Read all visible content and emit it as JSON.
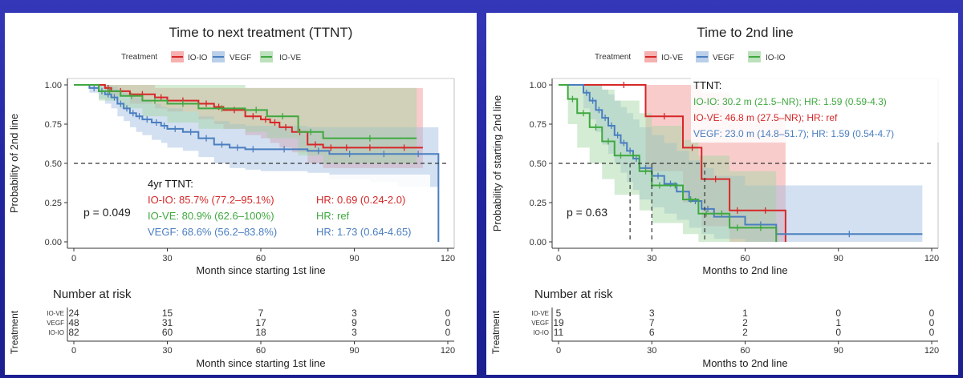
{
  "chart_data": [
    {
      "type": "line",
      "subtype": "kaplan-meier",
      "title": "Time to next treatment (TTNT)",
      "xlabel": "Month since starting 1st line",
      "ylabel": "Probability of 2nd line",
      "xlim": [
        0,
        120
      ],
      "ylim": [
        0,
        1
      ],
      "x_ticks": [
        0,
        30,
        60,
        90,
        120
      ],
      "x_tick_labels": [
        "0",
        "30",
        "60",
        "90",
        "120"
      ],
      "y_ticks": [
        0,
        0.25,
        0.5,
        0.75,
        1
      ],
      "y_tick_labels": [
        "0.00",
        "0.25",
        "0.50",
        "0.75",
        "1.00"
      ],
      "median_line": 0.5,
      "legend": {
        "title": "Treatment",
        "position": "top"
      },
      "series": [
        {
          "name": "IO-IO",
          "color": "#d62728",
          "fill": "#f28e8e",
          "x": [
            0,
            10,
            12,
            18,
            26,
            30,
            40,
            45,
            48,
            55,
            60,
            63,
            66,
            70,
            75,
            80,
            85,
            90,
            100,
            112
          ],
          "y": [
            1,
            0.98,
            0.96,
            0.94,
            0.92,
            0.9,
            0.88,
            0.86,
            0.84,
            0.8,
            0.78,
            0.76,
            0.73,
            0.7,
            0.62,
            0.6,
            0.6,
            0.6,
            0.6,
            0.6
          ],
          "lower": [
            1,
            0.95,
            0.93,
            0.88,
            0.85,
            0.83,
            0.78,
            0.75,
            0.72,
            0.68,
            0.66,
            0.63,
            0.6,
            0.57,
            0.5,
            0.47,
            0.47,
            0.47,
            0.47,
            0.47
          ],
          "upper": [
            1,
            1,
            1,
            1,
            0.98,
            0.98,
            0.98,
            0.98,
            0.98,
            0.98,
            0.98,
            0.98,
            0.98,
            0.98,
            0.98,
            0.98,
            0.98,
            0.98,
            0.98,
            0.98
          ]
        },
        {
          "name": "VEGF",
          "color": "#4a7ec0",
          "fill": "#9dbbe0",
          "x": [
            0,
            5,
            8,
            10,
            12,
            14,
            16,
            18,
            20,
            22,
            25,
            28,
            30,
            35,
            40,
            45,
            50,
            55,
            60,
            75,
            82,
            95,
            104,
            117
          ],
          "y": [
            1,
            0.98,
            0.96,
            0.94,
            0.92,
            0.88,
            0.85,
            0.82,
            0.8,
            0.78,
            0.76,
            0.74,
            0.72,
            0.7,
            0.66,
            0.62,
            0.6,
            0.59,
            0.59,
            0.58,
            0.56,
            0.56,
            0.56,
            0
          ],
          "lower": [
            1,
            0.95,
            0.91,
            0.88,
            0.85,
            0.8,
            0.77,
            0.73,
            0.7,
            0.68,
            0.65,
            0.63,
            0.6,
            0.58,
            0.54,
            0.5,
            0.47,
            0.46,
            0.45,
            0.44,
            0.4,
            0.38,
            0.35,
            0
          ],
          "upper": [
            1,
            1,
            1,
            1,
            0.99,
            0.97,
            0.95,
            0.93,
            0.92,
            0.9,
            0.88,
            0.86,
            0.85,
            0.83,
            0.8,
            0.77,
            0.75,
            0.74,
            0.74,
            0.73,
            0.73,
            0.73,
            0.73,
            0
          ]
        },
        {
          "name": "IO-VE",
          "color": "#3fa83f",
          "fill": "#9fd49f",
          "x": [
            0,
            8,
            15,
            22,
            30,
            40,
            55,
            62,
            72,
            80,
            110
          ],
          "y": [
            1,
            0.96,
            0.93,
            0.9,
            0.88,
            0.85,
            0.84,
            0.8,
            0.7,
            0.66,
            0.66
          ],
          "lower": [
            1,
            0.9,
            0.85,
            0.8,
            0.76,
            0.72,
            0.7,
            0.66,
            0.55,
            0.5,
            0.5
          ],
          "upper": [
            1,
            1,
            1,
            1,
            1,
            1,
            0.98,
            0.98,
            0.98,
            0.98,
            0.98
          ]
        }
      ],
      "pvalue": "p = 0.049",
      "annotation": {
        "heading": "4yr TTNT:",
        "rows": [
          {
            "series": "IO-IO",
            "text": "IO-IO: 85.7% (77.2–95.1%)",
            "hr": "HR: 0.69 (0.24-2.0)",
            "color": "#d62728"
          },
          {
            "series": "IO-VE",
            "text": "IO-VE: 80.9% (62.6–100%)",
            "hr": "HR: ref",
            "color": "#3fa83f"
          },
          {
            "series": "VEGF",
            "text": "VEGF: 68.6% (56.2–83.8%)",
            "hr": "HR: 1.73 (0.64-4.65)",
            "color": "#4a7ec0"
          }
        ]
      },
      "risk_table": {
        "title": "Number at risk",
        "ylabel": "Treatment",
        "xlabel": "Month since starting 1st line",
        "rows": [
          {
            "name": "IO-VE",
            "values": [
              "24",
              "15",
              "7",
              "3",
              "0"
            ]
          },
          {
            "name": "VEGF",
            "values": [
              "48",
              "31",
              "17",
              "9",
              "0"
            ]
          },
          {
            "name": "IO-IO",
            "values": [
              "82",
              "60",
              "18",
              "3",
              "0"
            ]
          }
        ]
      }
    },
    {
      "type": "line",
      "subtype": "kaplan-meier",
      "title": "Time to 2nd line",
      "xlabel": "Months to 2nd line",
      "ylabel": "Probability of starting 2nd line",
      "xlim": [
        0,
        120
      ],
      "ylim": [
        0,
        1
      ],
      "x_ticks": [
        0,
        30,
        60,
        90,
        120
      ],
      "x_tick_labels": [
        "0",
        "30",
        "60",
        "90",
        "120"
      ],
      "y_ticks": [
        0,
        0.25,
        0.5,
        0.75,
        1
      ],
      "y_tick_labels": [
        "0.00",
        "0.25",
        "0.50",
        "0.75",
        "1.00"
      ],
      "median_line": 0.5,
      "median_drops": [
        23,
        30,
        47
      ],
      "legend": {
        "title": "Treatment",
        "position": "top"
      },
      "series": [
        {
          "name": "IO-VE",
          "color": "#d62728",
          "fill": "#f28e8e",
          "x": [
            0,
            14,
            28,
            40,
            46,
            55,
            60,
            73
          ],
          "y": [
            1,
            1,
            0.8,
            0.6,
            0.4,
            0.2,
            0.2,
            0
          ],
          "lower": [
            1,
            1,
            0.45,
            0.25,
            0.1,
            0,
            0,
            0
          ],
          "upper": [
            1,
            1,
            1,
            1,
            0.95,
            0.8,
            0.8,
            0
          ]
        },
        {
          "name": "VEGF",
          "color": "#4a7ec0",
          "fill": "#9dbbe0",
          "x": [
            0,
            8,
            10,
            12,
            14,
            16,
            18,
            20,
            22,
            24,
            26,
            30,
            34,
            38,
            42,
            46,
            50,
            60,
            70,
            117
          ],
          "y": [
            1,
            0.95,
            0.9,
            0.84,
            0.79,
            0.74,
            0.68,
            0.63,
            0.58,
            0.53,
            0.47,
            0.42,
            0.37,
            0.32,
            0.26,
            0.21,
            0.16,
            0.11,
            0.05,
            0.05
          ],
          "lower": [
            1,
            0.85,
            0.78,
            0.7,
            0.62,
            0.56,
            0.5,
            0.44,
            0.38,
            0.33,
            0.27,
            0.22,
            0.18,
            0.14,
            0.09,
            0.05,
            0.02,
            0,
            0,
            0
          ],
          "upper": [
            1,
            1,
            1,
            1,
            0.97,
            0.94,
            0.9,
            0.86,
            0.82,
            0.78,
            0.73,
            0.68,
            0.63,
            0.58,
            0.52,
            0.47,
            0.42,
            0.36,
            0.36,
            0.36
          ]
        },
        {
          "name": "IO-IO",
          "color": "#3fa83f",
          "fill": "#9fd49f",
          "x": [
            0,
            3,
            6,
            10,
            14,
            18,
            22,
            26,
            30,
            35,
            40,
            45,
            50,
            55,
            60,
            70
          ],
          "y": [
            1,
            0.91,
            0.82,
            0.73,
            0.64,
            0.55,
            0.55,
            0.45,
            0.36,
            0.36,
            0.27,
            0.18,
            0.18,
            0.09,
            0.09,
            0
          ],
          "lower": [
            1,
            0.75,
            0.6,
            0.5,
            0.4,
            0.3,
            0.3,
            0.2,
            0.12,
            0.12,
            0.05,
            0,
            0,
            0,
            0,
            0
          ],
          "upper": [
            1,
            1,
            1,
            1,
            0.97,
            0.9,
            0.9,
            0.82,
            0.74,
            0.74,
            0.65,
            0.55,
            0.55,
            0.45,
            0.45,
            0
          ]
        }
      ],
      "pvalue": "p = 0.63",
      "annotation": {
        "heading": "TTNT:",
        "rows": [
          {
            "series": "IO-IO",
            "text": "IO-IO: 30.2 m (21.5–NR); HR: 1.59 (0.59-4.3)",
            "color": "#3fa83f"
          },
          {
            "series": "IO-VE",
            "text": "IO-VE: 46.8 m (27.5–NR); HR: ref",
            "color": "#d62728"
          },
          {
            "series": "VEGF",
            "text": "VEGF: 23.0 m (14.8–51.7); HR: 1.59 (0.54-4.7)",
            "color": "#4a7ec0"
          }
        ]
      },
      "risk_table": {
        "title": "Number at risk",
        "ylabel": "Treatment",
        "xlabel": "Months to 2nd line",
        "rows": [
          {
            "name": "IO-VE",
            "values": [
              "5",
              "3",
              "1",
              "0",
              "0"
            ]
          },
          {
            "name": "VEGF",
            "values": [
              "19",
              "7",
              "2",
              "1",
              "0"
            ]
          },
          {
            "name": "IO-IO",
            "values": [
              "11",
              "6",
              "2",
              "0",
              "0"
            ]
          }
        ]
      }
    }
  ]
}
